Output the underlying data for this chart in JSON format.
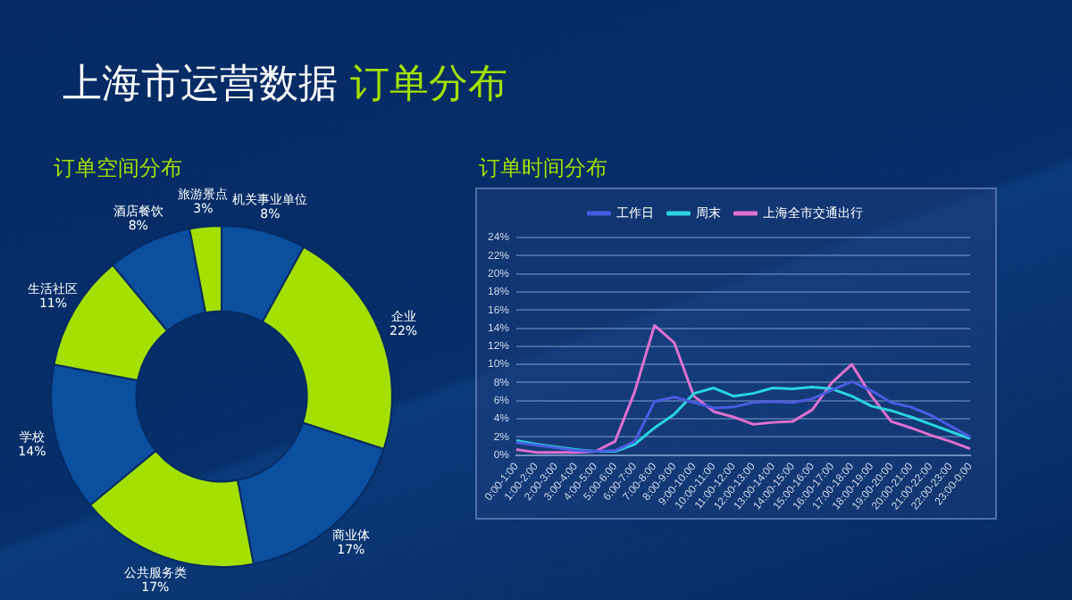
{
  "chart_data": [
    {
      "type": "donut",
      "title": "上海市运营数据 订单分布",
      "subtitle": "订单空间分布",
      "categories": [
        "机关事业单位",
        "企业",
        "商业体",
        "公共服务类",
        "学校",
        "生活社区",
        "酒店餐饮",
        "旅游景点"
      ],
      "values": [
        8,
        22,
        17,
        17,
        14,
        11,
        8,
        3
      ],
      "value_labels": [
        "8%",
        "22%",
        "17%",
        "17%",
        "14%",
        "11%",
        "8%",
        "3%"
      ],
      "colors": [
        "#0b4f9e",
        "#a3e000",
        "#0b4f9e",
        "#a3e000",
        "#0b4f9e",
        "#a3e000",
        "#0b4f9e",
        "#a3e000"
      ],
      "legend": false
    },
    {
      "type": "line",
      "title": "订单时间分布",
      "categories": [
        "0:00-1:00",
        "1:00-2:00",
        "2:00-3:00",
        "3:00-4:00",
        "4:00-5:00",
        "5:00-6:00",
        "6:00-7:00",
        "7:00-8:00",
        "8:00-9:00",
        "9:00-10:00",
        "10:00-11:00",
        "11:00-12:00",
        "12:00-13:00",
        "13:00-14:00",
        "14:00-15:00",
        "15:00-16:00",
        "16:00-17:00",
        "17:00-18:00",
        "18:00-19:00",
        "19:00-20:00",
        "20:00-21:00",
        "21:00-22:00",
        "22:00-23:00",
        "23:00-0:00"
      ],
      "series": [
        {
          "name": "工作日",
          "color": "#4a5ce0",
          "values": [
            1.4,
            1.1,
            0.8,
            0.5,
            0.4,
            0.5,
            1.5,
            5.9,
            6.4,
            5.8,
            5.2,
            5.3,
            5.8,
            5.9,
            5.8,
            6.2,
            7.2,
            8.1,
            7.1,
            5.8,
            5.3,
            4.4,
            3.2,
            2.0
          ]
        },
        {
          "name": "周末",
          "color": "#2ad4e0",
          "values": [
            1.6,
            1.2,
            0.9,
            0.6,
            0.4,
            0.4,
            1.2,
            3.0,
            4.5,
            6.8,
            7.4,
            6.5,
            6.8,
            7.4,
            7.3,
            7.5,
            7.3,
            6.5,
            5.4,
            4.9,
            4.2,
            3.4,
            2.6,
            1.8
          ]
        },
        {
          "name": "上海全市交通出行",
          "color": "#e070d0",
          "values": [
            0.6,
            0.3,
            0.3,
            0.3,
            0.4,
            1.5,
            7.0,
            14.3,
            12.4,
            6.5,
            4.8,
            4.2,
            3.4,
            3.6,
            3.7,
            5.0,
            8.0,
            10.0,
            6.5,
            3.7,
            3.0,
            2.2,
            1.5,
            0.7
          ]
        }
      ],
      "ylim": [
        0,
        24
      ],
      "yticks": [
        {
          "value": 0,
          "label": "0%"
        },
        {
          "value": 2,
          "label": "2%"
        },
        {
          "value": 4,
          "label": "4%"
        },
        {
          "value": 6,
          "label": "6%"
        },
        {
          "value": 8,
          "label": "8%"
        },
        {
          "value": 10,
          "label": "10%"
        },
        {
          "value": 12,
          "label": "12%"
        },
        {
          "value": 14,
          "label": "14%"
        },
        {
          "value": 16,
          "label": "16%"
        },
        {
          "value": 18,
          "label": "18%"
        },
        {
          "value": 20,
          "label": "20%"
        },
        {
          "value": 22,
          "label": "22%"
        },
        {
          "value": 24,
          "label": "24%"
        }
      ],
      "grid": "y",
      "legend": "top",
      "marker": "none",
      "line_style": "solid"
    }
  ]
}
